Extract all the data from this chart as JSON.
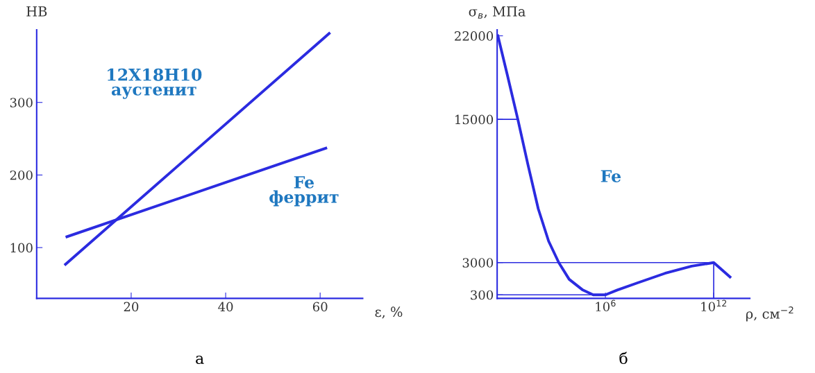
{
  "chart_data": [
    {
      "type": "line",
      "xlabel": "ε, %",
      "ylabel": "HB",
      "xlim": [
        0,
        69
      ],
      "ylim": [
        30,
        400
      ],
      "xticks": [
        20,
        40,
        60
      ],
      "yticks": [
        100,
        200,
        300
      ],
      "grid": false,
      "marker": "none",
      "line_style": "solid",
      "series": [
        {
          "color": "#2b2be0",
          "x": [
            6.1,
            61.9
          ],
          "values": [
            77,
            395
          ]
        },
        {
          "color": "#2b2be0",
          "x": [
            6.4,
            61.2
          ],
          "values": [
            115,
            237
          ]
        }
      ],
      "annotations": [
        "12Х18Н10\nаустенит",
        "Fe\nферрит",
        "а"
      ]
    },
    {
      "type": "line",
      "xlabel": "ρ, см$^{−2}$",
      "ylabel": "σ$_{в}$, МПа",
      "log": "x",
      "xlim": [
        1,
        100000000000000.0
      ],
      "ylim": [
        0,
        22500
      ],
      "xticks": [
        {
          "value": 1000000,
          "label": "10$^{6}$"
        },
        {
          "value": 1000000000000,
          "label": "10$^{12}$"
        }
      ],
      "yticks": [
        300,
        3000,
        15000,
        22000
      ],
      "grid": false,
      "marker": "none",
      "line_style": "solid",
      "series": [
        {
          "color": "#2b2be0",
          "x": [
            1.1,
            3.7,
            14,
            51,
            190,
            710,
            2600,
            9800,
            56000,
            210000,
            1000000,
            4500000,
            60000000,
            2000000000,
            60000000000,
            1000000000000,
            8000000000000
          ],
          "values": [
            22000,
            18700,
            15000,
            11200,
            7500,
            4800,
            3000,
            1600,
            700,
            300,
            300,
            700,
            1300,
            2100,
            2700,
            3000,
            1800
          ]
        },
        {
          "type": "line",
          "color": "#2b2be0",
          "x": [
            1,
            14
          ],
          "values": [
            15000,
            15000
          ]
        },
        {
          "type": "line",
          "color": "#2b2be0",
          "x": [
            1,
            1000000000000,
            1000000000000
          ],
          "values": [
            3000,
            3000,
            0
          ]
        },
        {
          "type": "line",
          "color": "#2b2be0",
          "x": [
            1,
            1000000
          ],
          "values": [
            300,
            300
          ]
        }
      ],
      "annotations": [
        "Fe",
        "б"
      ]
    }
  ]
}
